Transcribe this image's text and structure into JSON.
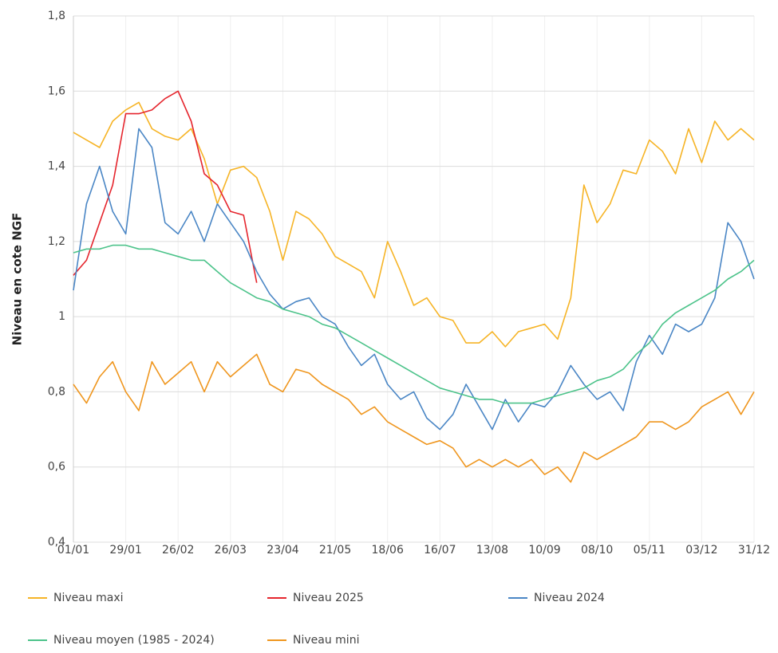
{
  "chart_data": {
    "type": "line",
    "y_label": "Niveau en cote NGF",
    "categories": [
      "01/01",
      null,
      null,
      null,
      "29/01",
      null,
      null,
      null,
      "26/02",
      null,
      null,
      null,
      "26/03",
      null,
      null,
      null,
      "23/04",
      null,
      null,
      null,
      "21/05",
      null,
      null,
      null,
      "18/06",
      null,
      null,
      null,
      "16/07",
      null,
      null,
      null,
      "13/08",
      null,
      null,
      null,
      "10/09",
      null,
      null,
      null,
      "08/10",
      null,
      null,
      null,
      "05/11",
      null,
      null,
      null,
      "03/12",
      null,
      null,
      null,
      "31/12"
    ],
    "ylim": [
      0.4,
      1.8
    ],
    "yticks": [
      {
        "value": 0.4,
        "label": "0,4"
      },
      {
        "value": 0.6,
        "label": "0,6"
      },
      {
        "value": 0.8,
        "label": "0,8"
      },
      1,
      {
        "value": 1.2,
        "label": "1,2"
      },
      {
        "value": 1.4,
        "label": "1,4"
      },
      {
        "value": 1.6,
        "label": "1,6"
      },
      {
        "value": 1.8,
        "label": "1,8"
      }
    ],
    "grid": true,
    "legend": "bottom",
    "series": [
      {
        "name": "Niveau maxi",
        "color": "#f6b426",
        "values": [
          1.49,
          1.47,
          1.45,
          1.52,
          1.55,
          1.57,
          1.5,
          1.48,
          1.47,
          1.5,
          1.42,
          1.3,
          1.39,
          1.4,
          1.37,
          1.28,
          1.15,
          1.28,
          1.26,
          1.22,
          1.16,
          1.14,
          1.12,
          1.05,
          1.2,
          1.12,
          1.03,
          1.05,
          1.0,
          0.99,
          0.93,
          0.93,
          0.96,
          0.92,
          0.96,
          0.97,
          0.98,
          0.94,
          1.05,
          1.35,
          1.25,
          1.3,
          1.39,
          1.38,
          1.47,
          1.44,
          1.38,
          1.5,
          1.41,
          1.52,
          1.47,
          1.5,
          1.47
        ]
      },
      {
        "name": "Niveau 2025",
        "color": "#e5252d",
        "values": [
          1.11,
          1.15,
          1.25,
          1.35,
          1.54,
          1.54,
          1.55,
          1.58,
          1.6,
          1.52,
          1.38,
          1.35,
          1.28,
          1.27,
          1.09,
          null,
          null,
          null,
          null,
          null,
          null,
          null,
          null,
          null,
          null,
          null,
          null,
          null,
          null,
          null,
          null,
          null,
          null,
          null,
          null,
          null,
          null,
          null,
          null,
          null,
          null,
          null,
          null,
          null,
          null,
          null,
          null,
          null,
          null,
          null,
          null,
          null,
          null
        ]
      },
      {
        "name": "Niveau 2024",
        "color": "#4a86c5",
        "values": [
          1.07,
          1.3,
          1.4,
          1.28,
          1.22,
          1.5,
          1.45,
          1.25,
          1.22,
          1.28,
          1.2,
          1.3,
          1.25,
          1.2,
          1.12,
          1.06,
          1.02,
          1.04,
          1.05,
          1.0,
          0.98,
          0.92,
          0.87,
          0.9,
          0.82,
          0.78,
          0.8,
          0.73,
          0.7,
          0.74,
          0.82,
          0.76,
          0.7,
          0.78,
          0.72,
          0.77,
          0.76,
          0.8,
          0.87,
          0.82,
          0.78,
          0.8,
          0.75,
          0.88,
          0.95,
          0.9,
          0.98,
          0.96,
          0.98,
          1.05,
          1.25,
          1.2,
          1.1
        ]
      },
      {
        "name": "Niveau moyen (1985 - 2024)",
        "color": "#4cc38a",
        "values": [
          1.17,
          1.18,
          1.18,
          1.19,
          1.19,
          1.18,
          1.18,
          1.17,
          1.16,
          1.15,
          1.15,
          1.12,
          1.09,
          1.07,
          1.05,
          1.04,
          1.02,
          1.01,
          1.0,
          0.98,
          0.97,
          0.95,
          0.93,
          0.91,
          0.89,
          0.87,
          0.85,
          0.83,
          0.81,
          0.8,
          0.79,
          0.78,
          0.78,
          0.77,
          0.77,
          0.77,
          0.78,
          0.79,
          0.8,
          0.81,
          0.83,
          0.84,
          0.86,
          0.9,
          0.93,
          0.98,
          1.01,
          1.03,
          1.05,
          1.07,
          1.1,
          1.12,
          1.15
        ]
      },
      {
        "name": "Niveau mini",
        "color": "#ef961e",
        "values": [
          0.82,
          0.77,
          0.84,
          0.88,
          0.8,
          0.75,
          0.88,
          0.82,
          0.85,
          0.88,
          0.8,
          0.88,
          0.84,
          0.87,
          0.9,
          0.82,
          0.8,
          0.86,
          0.85,
          0.82,
          0.8,
          0.78,
          0.74,
          0.76,
          0.72,
          0.7,
          0.68,
          0.66,
          0.67,
          0.65,
          0.6,
          0.62,
          0.6,
          0.62,
          0.6,
          0.62,
          0.58,
          0.6,
          0.56,
          0.64,
          0.62,
          0.64,
          0.66,
          0.68,
          0.72,
          0.72,
          0.7,
          0.72,
          0.76,
          0.78,
          0.8,
          0.74,
          0.8
        ]
      }
    ]
  }
}
